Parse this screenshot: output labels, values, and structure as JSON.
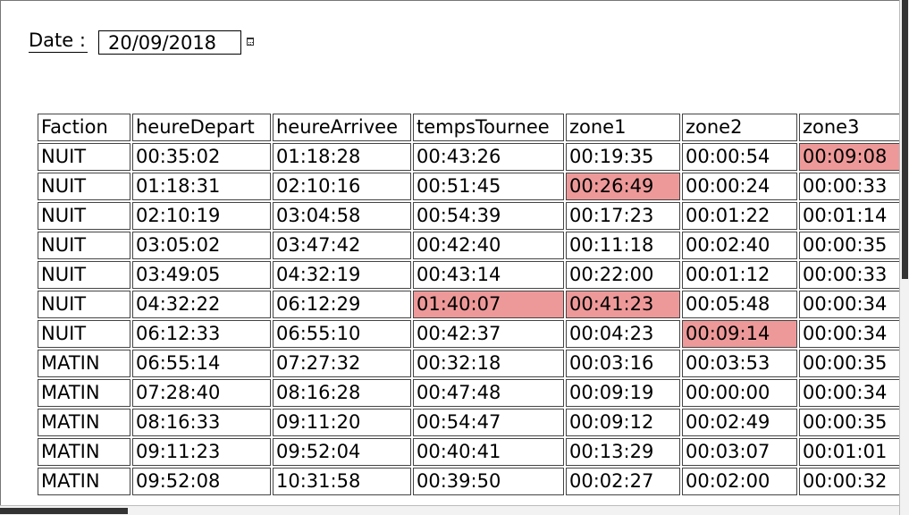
{
  "date_filter": {
    "label": "Date :",
    "value": "20/09/2018",
    "icon": "calendar-icon"
  },
  "table": {
    "columns": [
      "Faction",
      "heureDepart",
      "heureArrivee",
      "tempsTournee",
      "zone1",
      "zone2",
      "zone3"
    ],
    "rows": [
      {
        "cells": [
          "NUIT",
          "00:35:02",
          "01:18:28",
          "00:43:26",
          "00:19:35",
          "00:00:54",
          "00:09:08"
        ],
        "highlight": [
          6
        ]
      },
      {
        "cells": [
          "NUIT",
          "01:18:31",
          "02:10:16",
          "00:51:45",
          "00:26:49",
          "00:00:24",
          "00:00:33"
        ],
        "highlight": [
          4
        ]
      },
      {
        "cells": [
          "NUIT",
          "02:10:19",
          "03:04:58",
          "00:54:39",
          "00:17:23",
          "00:01:22",
          "00:01:14"
        ],
        "highlight": []
      },
      {
        "cells": [
          "NUIT",
          "03:05:02",
          "03:47:42",
          "00:42:40",
          "00:11:18",
          "00:02:40",
          "00:00:35"
        ],
        "highlight": []
      },
      {
        "cells": [
          "NUIT",
          "03:49:05",
          "04:32:19",
          "00:43:14",
          "00:22:00",
          "00:01:12",
          "00:00:33"
        ],
        "highlight": []
      },
      {
        "cells": [
          "NUIT",
          "04:32:22",
          "06:12:29",
          "01:40:07",
          "00:41:23",
          "00:05:48",
          "00:00:34"
        ],
        "highlight": [
          3,
          4
        ]
      },
      {
        "cells": [
          "NUIT",
          "06:12:33",
          "06:55:10",
          "00:42:37",
          "00:04:23",
          "00:09:14",
          "00:00:34"
        ],
        "highlight": [
          5
        ]
      },
      {
        "cells": [
          "MATIN",
          "06:55:14",
          "07:27:32",
          "00:32:18",
          "00:03:16",
          "00:03:53",
          "00:00:35"
        ],
        "highlight": []
      },
      {
        "cells": [
          "MATIN",
          "07:28:40",
          "08:16:28",
          "00:47:48",
          "00:09:19",
          "00:00:00",
          "00:00:34"
        ],
        "highlight": []
      },
      {
        "cells": [
          "MATIN",
          "08:16:33",
          "09:11:20",
          "00:54:47",
          "00:09:12",
          "00:02:49",
          "00:00:35"
        ],
        "highlight": []
      },
      {
        "cells": [
          "MATIN",
          "09:11:23",
          "09:52:04",
          "00:40:41",
          "00:13:29",
          "00:03:07",
          "00:01:01"
        ],
        "highlight": []
      },
      {
        "cells": [
          "MATIN",
          "09:52:08",
          "10:31:58",
          "00:39:50",
          "00:02:27",
          "00:02:00",
          "00:00:32"
        ],
        "highlight": []
      }
    ]
  },
  "colors": {
    "highlight": "#ee9999",
    "scrollbar_thumb": "#333333"
  }
}
